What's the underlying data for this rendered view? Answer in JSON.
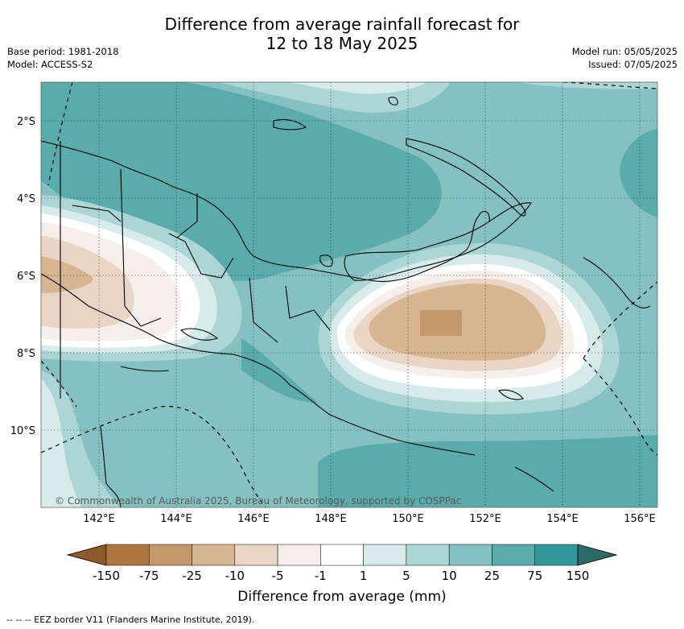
{
  "title_line1": "Difference from average rainfall forecast for",
  "title_line2": "12 to 18 May 2025",
  "base_period": "Base period: 1981-2018",
  "model": "Model: ACCESS-S2",
  "model_run": "Model run: 05/05/2025",
  "issued": "Issued: 07/05/2025",
  "copyright": "© Commonwealth of Australia 2025, Bureau of Meteorology, supported by COSPPac",
  "lat_labels": [
    "2°S",
    "4°S",
    "6°S",
    "8°S",
    "10°S"
  ],
  "lon_labels": [
    "142°E",
    "144°E",
    "146°E",
    "148°E",
    "150°E",
    "152°E",
    "154°E",
    "156°E"
  ],
  "colorbar": {
    "title": "Difference from average (mm)",
    "labels": [
      "-150",
      "-75",
      "-25",
      "-10",
      "-5",
      "-1",
      "1",
      "5",
      "10",
      "25",
      "75",
      "150"
    ],
    "colors": [
      "#8f5a2a",
      "#ad7640",
      "#c4986a",
      "#d7b593",
      "#e8d5c4",
      "#f4efea",
      "#ffffff",
      "#d7ebea",
      "#acd6d5",
      "#85c1c1",
      "#5aabac",
      "#319a98",
      "#2a6b68"
    ]
  },
  "footnote": "--  --  -- EEZ border V11 (Flanders Marine Institute, 2019)."
}
